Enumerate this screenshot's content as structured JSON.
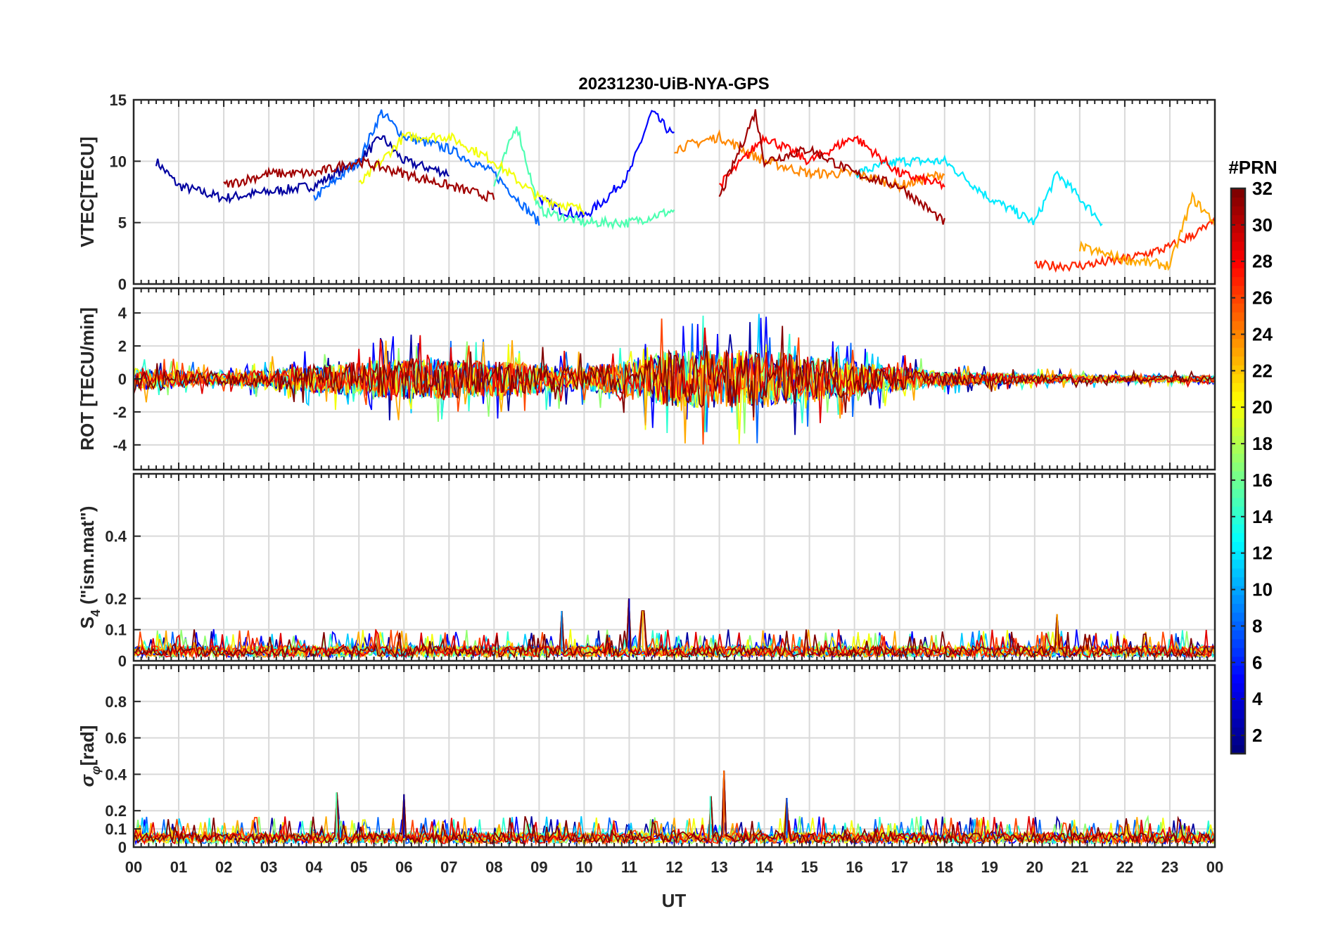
{
  "chart_data": {
    "type": "line",
    "title": "20231230-UiB-NYA-GPS",
    "xlabel": "UT",
    "x_ticks": [
      "00",
      "01",
      "02",
      "03",
      "04",
      "05",
      "06",
      "07",
      "08",
      "09",
      "10",
      "11",
      "12",
      "13",
      "14",
      "15",
      "16",
      "17",
      "18",
      "19",
      "20",
      "21",
      "22",
      "23",
      "00"
    ],
    "xlim_hours": [
      0,
      24
    ],
    "grid": true,
    "colorbar": {
      "label": "#PRN",
      "range": [
        1,
        32
      ],
      "ticks": [
        "2",
        "4",
        "6",
        "8",
        "10",
        "12",
        "14",
        "16",
        "18",
        "20",
        "22",
        "24",
        "26",
        "28",
        "30",
        "32"
      ],
      "colormap": "jet",
      "colors": [
        "#00008f",
        "#0000ff",
        "#0080ff",
        "#00ffff",
        "#80ff80",
        "#ffff00",
        "#ff8000",
        "#ff0000",
        "#800000"
      ]
    },
    "panels": [
      {
        "id": "vtec",
        "ylabel": "VTEC[TECU]",
        "ylim": [
          0,
          15
        ],
        "yticks": [
          0,
          5,
          10,
          15
        ],
        "ytick_labels": [
          "0",
          "5",
          "10",
          "15"
        ],
        "series": [
          {
            "prn": 2,
            "x": [
              0.5,
              1,
              2,
              3,
              4,
              5,
              5.5,
              6,
              7
            ],
            "y": [
              10,
              8,
              7,
              7.5,
              8,
              10,
              12,
              10,
              9
            ]
          },
          {
            "prn": 5,
            "x": [
              9,
              9.5,
              10,
              10.5,
              11,
              11.5,
              12
            ],
            "y": [
              7,
              6,
              5.5,
              7,
              9,
              14,
              12
            ]
          },
          {
            "prn": 8,
            "x": [
              4,
              5,
              5.5,
              6,
              7,
              8,
              9
            ],
            "y": [
              7,
              10,
              14,
              12,
              11,
              9,
              5
            ]
          },
          {
            "prn": 12,
            "x": [
              16,
              17,
              18,
              19,
              20,
              20.5,
              21,
              21.5
            ],
            "y": [
              9,
              10,
              10,
              7,
              5,
              9,
              7,
              5
            ]
          },
          {
            "prn": 15,
            "x": [
              8,
              8.5,
              9,
              10,
              11,
              12
            ],
            "y": [
              8,
              13,
              6,
              5,
              5,
              6
            ]
          },
          {
            "prn": 20,
            "x": [
              5,
              6,
              7,
              8,
              9,
              10
            ],
            "y": [
              8,
              12,
              12,
              10,
              7,
              6
            ]
          },
          {
            "prn": 24,
            "x": [
              12,
              13,
              14,
              15,
              16,
              17,
              18
            ],
            "y": [
              11,
              12,
              10,
              9,
              9,
              8,
              9
            ]
          },
          {
            "prn": 28,
            "x": [
              13,
              14,
              15,
              16,
              17,
              18
            ],
            "y": [
              8,
              12,
              10,
              12,
              9,
              8
            ]
          },
          {
            "prn": 31,
            "x": [
              2,
              3,
              4,
              5,
              6,
              7,
              8
            ],
            "y": [
              8,
              9,
              9,
              10,
              9,
              8,
              7
            ]
          },
          {
            "prn": 31,
            "x": [
              13,
              13.8,
              14,
              15,
              16,
              17,
              18
            ],
            "y": [
              7,
              14,
              10,
              11,
              9,
              8,
              5
            ]
          },
          {
            "prn": 27,
            "x": [
              20,
              21,
              22,
              23,
              24
            ],
            "y": [
              1.5,
              1.5,
              2,
              3,
              5
            ]
          },
          {
            "prn": 23,
            "x": [
              21,
              22,
              23,
              23.5,
              24
            ],
            "y": [
              3,
              2,
              1.5,
              7,
              5
            ]
          }
        ]
      },
      {
        "id": "rot",
        "ylabel": "ROT [TECU/min]",
        "ylim": [
          -5.5,
          5.5
        ],
        "yticks": [
          -4,
          -2,
          0,
          2,
          4
        ],
        "ytick_labels": [
          "-4",
          "-2",
          "0",
          "2",
          "4"
        ],
        "envelope": {
          "x": [
            0,
            2,
            4,
            6,
            8,
            10,
            12,
            14,
            16,
            18,
            20,
            22,
            24
          ],
          "amplitude": [
            1,
            0.5,
            1.2,
            1.8,
            1.6,
            1,
            2.5,
            2.5,
            1.5,
            0.6,
            0.4,
            0.3,
            0.3
          ]
        }
      },
      {
        "id": "s4",
        "ylabel": "S4 (\"ism.mat\")",
        "ylabel_main": "S",
        "ylabel_sub": "4",
        "ylabel_rest": " (\"ism.mat\")",
        "ylim": [
          0,
          0.6
        ],
        "yticks": [
          0,
          0.1,
          0.2,
          0.4
        ],
        "ytick_labels": [
          "0",
          "0.1",
          "0.2",
          "0.4"
        ],
        "typical_level": 0.03,
        "peaks": [
          {
            "x": 11,
            "y": 0.2
          },
          {
            "x": 11.3,
            "y": 0.16
          },
          {
            "x": 20.5,
            "y": 0.15
          },
          {
            "x": 9.5,
            "y": 0.16
          }
        ]
      },
      {
        "id": "sigma",
        "ylabel": "σφ[rad]",
        "ylabel_main": "σ",
        "ylabel_sub": "φ",
        "ylabel_rest": "[rad]",
        "ylim": [
          0,
          1
        ],
        "yticks": [
          0,
          0.1,
          0.2,
          0.4,
          0.6,
          0.8
        ],
        "ytick_labels": [
          "0",
          "0.1",
          "0.2",
          "0.4",
          "0.6",
          "0.8"
        ],
        "typical_level": 0.05,
        "peaks": [
          {
            "x": 4.5,
            "y": 0.3
          },
          {
            "x": 6,
            "y": 0.29
          },
          {
            "x": 13.1,
            "y": 0.42
          },
          {
            "x": 14.5,
            "y": 0.27
          },
          {
            "x": 12.8,
            "y": 0.28
          }
        ]
      }
    ]
  }
}
